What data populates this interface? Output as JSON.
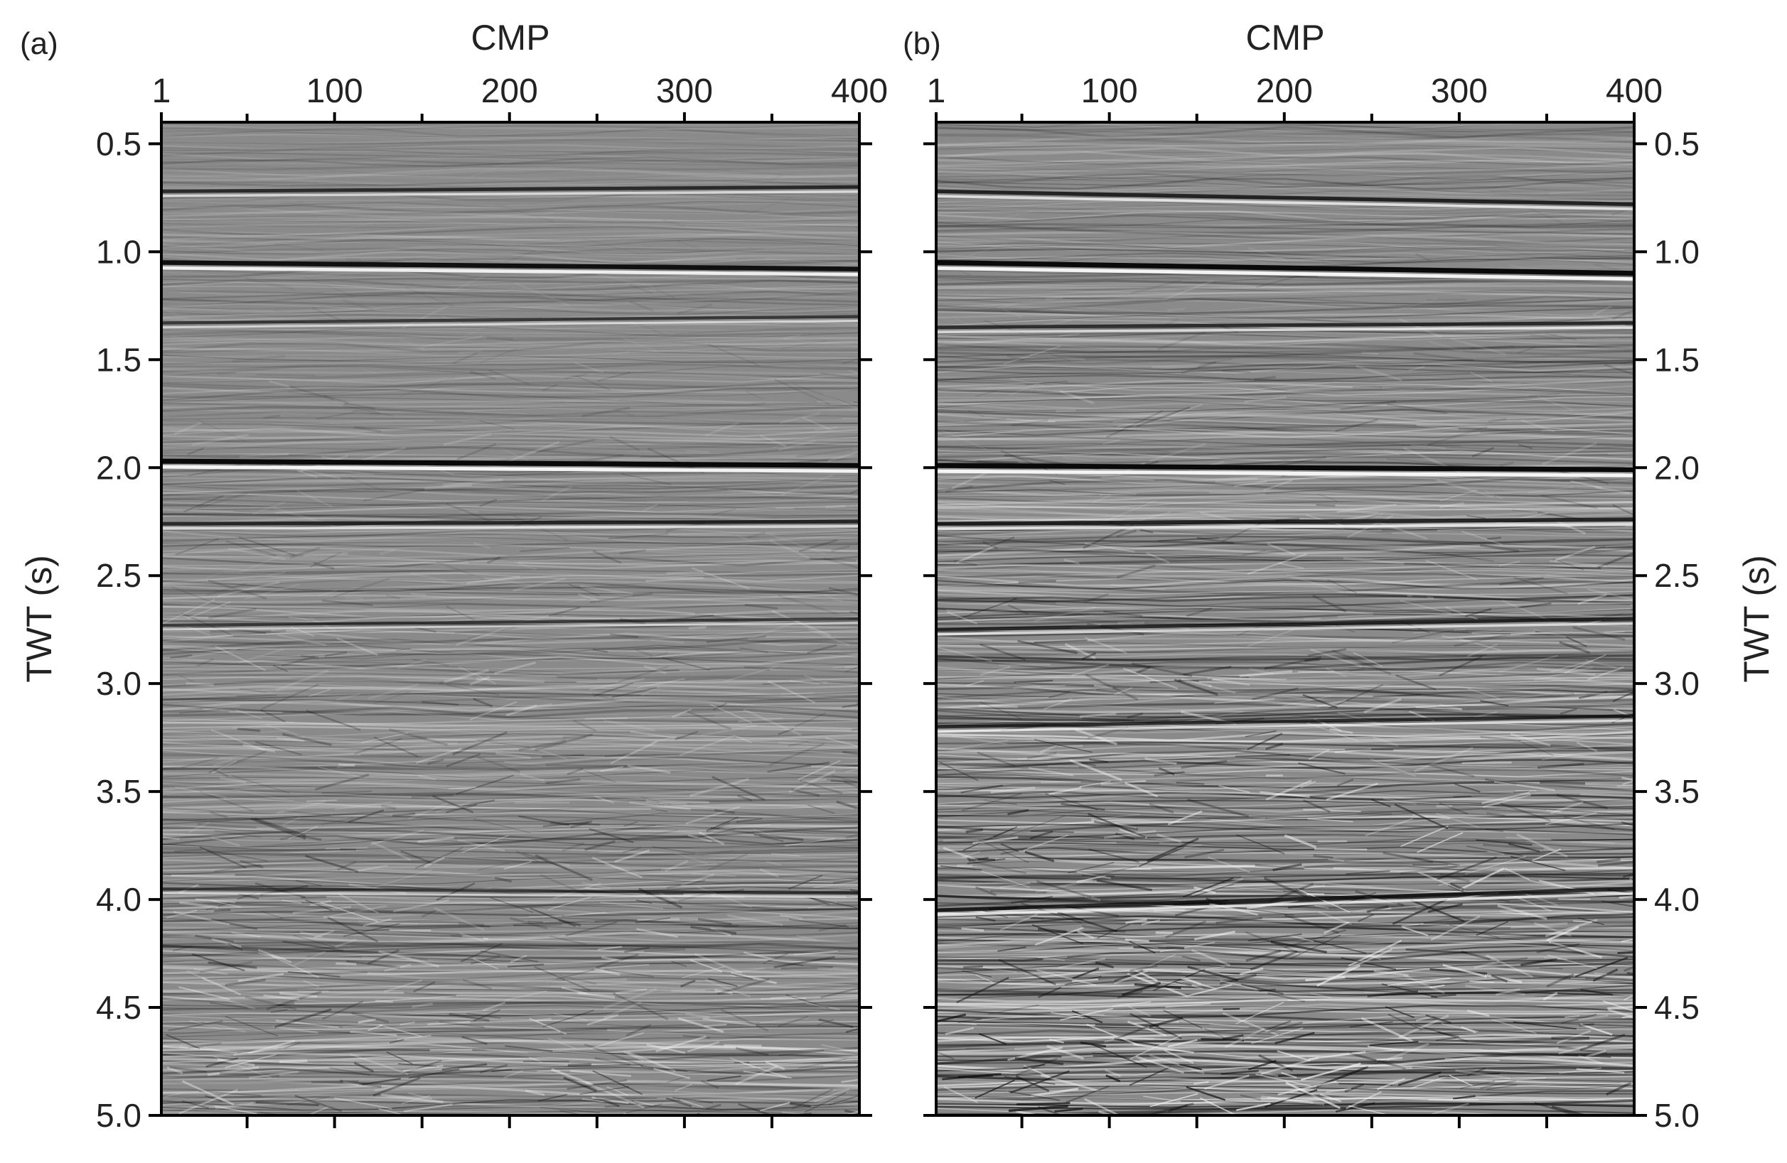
{
  "chart_data": [
    {
      "type": "heatmap",
      "panel_label": "(a)",
      "title": "",
      "xlabel": "CMP",
      "ylabel": "TWT (s)",
      "xlim": [
        1,
        400
      ],
      "ylim": [
        0.4,
        5.0
      ],
      "y_inverted": true,
      "x_axis_position": "top",
      "y_axis_position": "left",
      "x_ticks": [
        1,
        100,
        200,
        300,
        400
      ],
      "x_tick_labels": [
        "1",
        "100",
        "200",
        "300",
        "400"
      ],
      "y_ticks": [
        0.5,
        1.0,
        1.5,
        2.0,
        2.5,
        3.0,
        3.5,
        4.0,
        4.5,
        5.0
      ],
      "y_tick_labels": [
        "0.5",
        "1.0",
        "1.5",
        "2.0",
        "2.5",
        "3.0",
        "3.5",
        "4.0",
        "4.5",
        "5.0"
      ],
      "colormap": "gray",
      "reflectors": [
        {
          "twt_start": 0.72,
          "twt_end": 0.7,
          "strength": 0.5
        },
        {
          "twt_start": 1.05,
          "twt_end": 1.08,
          "strength": 0.9
        },
        {
          "twt_start": 1.33,
          "twt_end": 1.3,
          "strength": 0.35
        },
        {
          "twt_start": 1.97,
          "twt_end": 1.99,
          "strength": 1.0
        },
        {
          "twt_start": 2.26,
          "twt_end": 2.25,
          "strength": 0.55
        },
        {
          "twt_start": 2.73,
          "twt_end": 2.7,
          "strength": 0.3
        },
        {
          "twt_start": 3.95,
          "twt_end": 3.97,
          "strength": 0.3
        }
      ]
    },
    {
      "type": "heatmap",
      "panel_label": "(b)",
      "title": "",
      "xlabel": "CMP",
      "ylabel": "TWT (s)",
      "xlim": [
        1,
        400
      ],
      "ylim": [
        0.4,
        5.0
      ],
      "y_inverted": true,
      "x_axis_position": "top",
      "y_axis_position": "right",
      "x_ticks": [
        1,
        100,
        200,
        300,
        400
      ],
      "x_tick_labels": [
        "1",
        "100",
        "200",
        "300",
        "400"
      ],
      "y_ticks": [
        0.5,
        1.0,
        1.5,
        2.0,
        2.5,
        3.0,
        3.5,
        4.0,
        4.5,
        5.0
      ],
      "y_tick_labels": [
        "0.5",
        "1.0",
        "1.5",
        "2.0",
        "2.5",
        "3.0",
        "3.5",
        "4.0",
        "4.5",
        "5.0"
      ],
      "colormap": "gray",
      "reflectors": [
        {
          "twt_start": 0.72,
          "twt_end": 0.78,
          "strength": 0.6
        },
        {
          "twt_start": 1.05,
          "twt_end": 1.1,
          "strength": 1.0
        },
        {
          "twt_start": 1.35,
          "twt_end": 1.33,
          "strength": 0.5
        },
        {
          "twt_start": 1.99,
          "twt_end": 2.01,
          "strength": 1.0
        },
        {
          "twt_start": 2.26,
          "twt_end": 2.24,
          "strength": 0.65
        },
        {
          "twt_start": 2.75,
          "twt_end": 2.7,
          "strength": 0.5
        },
        {
          "twt_start": 3.2,
          "twt_end": 3.15,
          "strength": 0.45
        },
        {
          "twt_start": 4.05,
          "twt_end": 3.95,
          "strength": 0.6
        }
      ]
    }
  ]
}
